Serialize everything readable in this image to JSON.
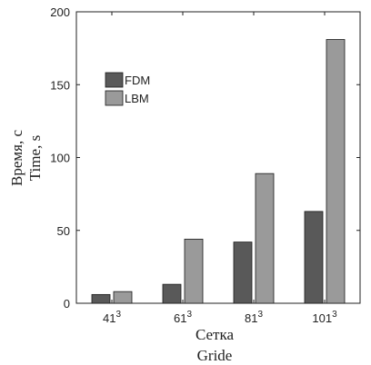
{
  "chart_data": {
    "type": "bar",
    "categories": [
      "41",
      "61",
      "81",
      "101"
    ],
    "category_superscript": "3",
    "series": [
      {
        "name": "FDM",
        "values": [
          6,
          13,
          42,
          63
        ],
        "color": "#595959"
      },
      {
        "name": "LBM",
        "values": [
          8,
          44,
          89,
          181
        ],
        "color": "#9a9a9a"
      }
    ],
    "xlabel": "Сетка",
    "xlabel_en": "Gride",
    "ylabel": "Время, с",
    "ylabel_en": "Time, s",
    "ylim": [
      0,
      200
    ],
    "yticks": [
      0,
      50,
      100,
      150,
      200
    ],
    "legend_position": "upper-left",
    "grid": false
  }
}
